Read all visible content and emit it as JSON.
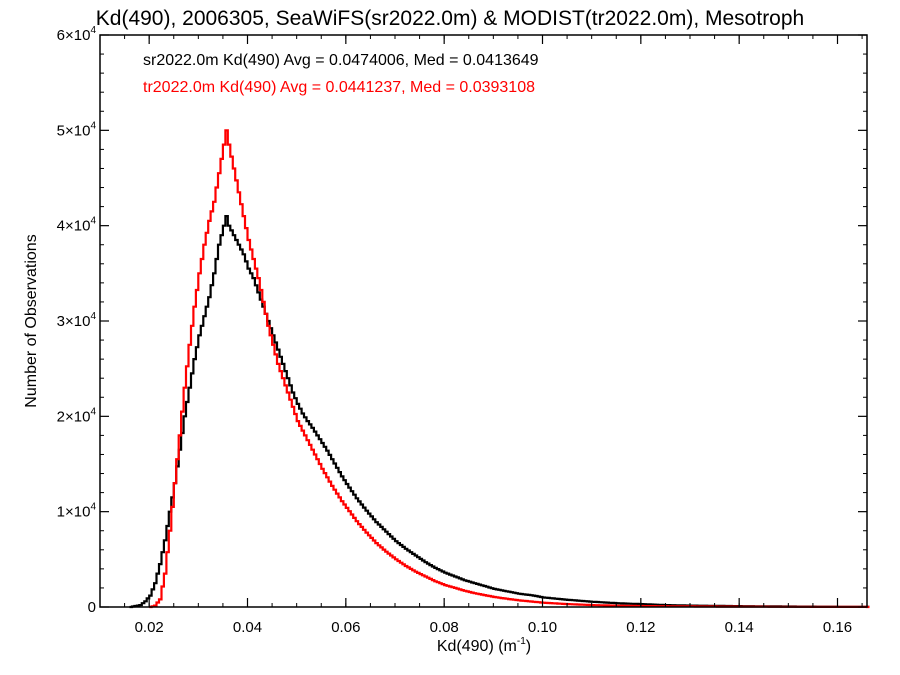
{
  "chart_data": {
    "type": "line",
    "title": "Kd(490), 2006305, SeaWiFS(sr2022.0m) & MODIST(tr2022.0m), Mesotroph",
    "xlabel": "Kd(490) (m",
    "xlabel_sup": "-1",
    "xlabel_close": ")",
    "ylabel": "Number of Observations",
    "xlim": [
      0.01,
      0.166
    ],
    "ylim": [
      0,
      60000
    ],
    "x_ticks": [
      {
        "value": 0.02,
        "label": "0.02"
      },
      {
        "value": 0.04,
        "label": "0.04"
      },
      {
        "value": 0.06,
        "label": "0.06"
      },
      {
        "value": 0.08,
        "label": "0.08"
      },
      {
        "value": 0.1,
        "label": "0.10"
      },
      {
        "value": 0.12,
        "label": "0.12"
      },
      {
        "value": 0.14,
        "label": "0.14"
      },
      {
        "value": 0.16,
        "label": "0.16"
      }
    ],
    "y_ticks": [
      {
        "value": 0,
        "label": "0",
        "exp": ""
      },
      {
        "value": 10000,
        "label": "1×10",
        "exp": "4"
      },
      {
        "value": 20000,
        "label": "2×10",
        "exp": "4"
      },
      {
        "value": 30000,
        "label": "3×10",
        "exp": "4"
      },
      {
        "value": 40000,
        "label": "4×10",
        "exp": "4"
      },
      {
        "value": 50000,
        "label": "5×10",
        "exp": "4"
      },
      {
        "value": 60000,
        "label": "6×10",
        "exp": "4"
      }
    ],
    "legend_placement": "top-left",
    "series": [
      {
        "name": "sr2022.0m Kd(490) Avg = 0.0474006, Med = 0.0413649",
        "color": "#000000",
        "style": "step",
        "points": [
          [
            0.016,
            0
          ],
          [
            0.018,
            200
          ],
          [
            0.019,
            600
          ],
          [
            0.02,
            1200
          ],
          [
            0.021,
            2500
          ],
          [
            0.022,
            4500
          ],
          [
            0.023,
            7000
          ],
          [
            0.024,
            10000
          ],
          [
            0.025,
            13000
          ],
          [
            0.026,
            16500
          ],
          [
            0.027,
            20000
          ],
          [
            0.028,
            23000
          ],
          [
            0.029,
            26000
          ],
          [
            0.03,
            28500
          ],
          [
            0.031,
            30500
          ],
          [
            0.032,
            32500
          ],
          [
            0.033,
            35000
          ],
          [
            0.034,
            38000
          ],
          [
            0.035,
            40000
          ],
          [
            0.0355,
            41000
          ],
          [
            0.036,
            40000
          ],
          [
            0.037,
            39000
          ],
          [
            0.038,
            38000
          ],
          [
            0.039,
            37000
          ],
          [
            0.04,
            35500
          ],
          [
            0.041,
            34500
          ],
          [
            0.042,
            33000
          ],
          [
            0.043,
            31500
          ],
          [
            0.044,
            30000
          ],
          [
            0.045,
            28500
          ],
          [
            0.046,
            27000
          ],
          [
            0.047,
            25500
          ],
          [
            0.048,
            24000
          ],
          [
            0.049,
            22500
          ],
          [
            0.05,
            21300
          ],
          [
            0.051,
            20300
          ],
          [
            0.052,
            19500
          ],
          [
            0.053,
            18800
          ],
          [
            0.054,
            18000
          ],
          [
            0.055,
            17200
          ],
          [
            0.056,
            16400
          ],
          [
            0.057,
            15500
          ],
          [
            0.058,
            14600
          ],
          [
            0.059,
            13700
          ],
          [
            0.06,
            12900
          ],
          [
            0.062,
            11400
          ],
          [
            0.064,
            10100
          ],
          [
            0.066,
            8900
          ],
          [
            0.068,
            7900
          ],
          [
            0.07,
            6900
          ],
          [
            0.072,
            6100
          ],
          [
            0.074,
            5400
          ],
          [
            0.076,
            4700
          ],
          [
            0.078,
            4100
          ],
          [
            0.08,
            3600
          ],
          [
            0.082,
            3200
          ],
          [
            0.084,
            2800
          ],
          [
            0.086,
            2500
          ],
          [
            0.088,
            2200
          ],
          [
            0.09,
            1900
          ],
          [
            0.092,
            1700
          ],
          [
            0.095,
            1400
          ],
          [
            0.098,
            1200
          ],
          [
            0.1,
            1000
          ],
          [
            0.105,
            750
          ],
          [
            0.11,
            550
          ],
          [
            0.115,
            400
          ],
          [
            0.12,
            300
          ],
          [
            0.125,
            200
          ],
          [
            0.13,
            150
          ],
          [
            0.14,
            90
          ],
          [
            0.15,
            50
          ],
          [
            0.16,
            25
          ],
          [
            0.166,
            15
          ]
        ]
      },
      {
        "name": "tr2022.0m Kd(490) Avg = 0.0441237, Med = 0.0393108",
        "color": "#ff0000",
        "style": "step",
        "points": [
          [
            0.02,
            0
          ],
          [
            0.021,
            150
          ],
          [
            0.022,
            800
          ],
          [
            0.023,
            3500
          ],
          [
            0.024,
            8000
          ],
          [
            0.025,
            13000
          ],
          [
            0.026,
            18000
          ],
          [
            0.027,
            23000
          ],
          [
            0.028,
            27500
          ],
          [
            0.029,
            31500
          ],
          [
            0.03,
            35000
          ],
          [
            0.031,
            38000
          ],
          [
            0.032,
            40500
          ],
          [
            0.033,
            42500
          ],
          [
            0.034,
            45500
          ],
          [
            0.035,
            48500
          ],
          [
            0.0355,
            50000
          ],
          [
            0.036,
            48500
          ],
          [
            0.037,
            46000
          ],
          [
            0.038,
            43500
          ],
          [
            0.039,
            41000
          ],
          [
            0.04,
            38500
          ],
          [
            0.041,
            36500
          ],
          [
            0.042,
            34500
          ],
          [
            0.043,
            32000
          ],
          [
            0.044,
            29500
          ],
          [
            0.045,
            27500
          ],
          [
            0.046,
            25500
          ],
          [
            0.047,
            24000
          ],
          [
            0.048,
            22500
          ],
          [
            0.049,
            21000
          ],
          [
            0.05,
            19500
          ],
          [
            0.051,
            18500
          ],
          [
            0.052,
            17500
          ],
          [
            0.053,
            16500
          ],
          [
            0.054,
            15500
          ],
          [
            0.055,
            14500
          ],
          [
            0.056,
            13600
          ],
          [
            0.057,
            12700
          ],
          [
            0.058,
            11900
          ],
          [
            0.059,
            11100
          ],
          [
            0.06,
            10400
          ],
          [
            0.062,
            9000
          ],
          [
            0.064,
            7800
          ],
          [
            0.066,
            6700
          ],
          [
            0.068,
            5800
          ],
          [
            0.07,
            5000
          ],
          [
            0.072,
            4300
          ],
          [
            0.074,
            3700
          ],
          [
            0.076,
            3200
          ],
          [
            0.078,
            2700
          ],
          [
            0.08,
            2300
          ],
          [
            0.082,
            2000
          ],
          [
            0.084,
            1700
          ],
          [
            0.086,
            1450
          ],
          [
            0.088,
            1250
          ],
          [
            0.09,
            1050
          ],
          [
            0.092,
            900
          ],
          [
            0.095,
            700
          ],
          [
            0.098,
            550
          ],
          [
            0.1,
            450
          ],
          [
            0.105,
            300
          ],
          [
            0.11,
            200
          ],
          [
            0.115,
            140
          ],
          [
            0.12,
            100
          ],
          [
            0.13,
            60
          ],
          [
            0.14,
            35
          ],
          [
            0.15,
            20
          ],
          [
            0.16,
            10
          ],
          [
            0.166,
            5
          ]
        ]
      }
    ]
  }
}
